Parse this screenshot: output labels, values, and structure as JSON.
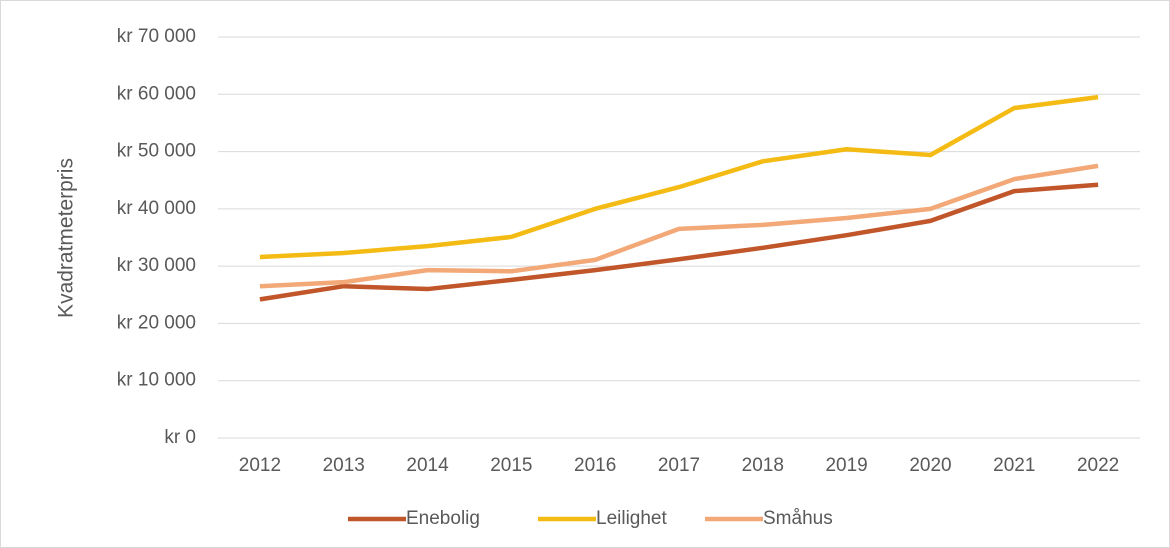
{
  "chart_data": {
    "type": "line",
    "ylabel": "Kvadratmeterpris",
    "categories": [
      "2012",
      "2013",
      "2014",
      "2015",
      "2016",
      "2017",
      "2018",
      "2019",
      "2020",
      "2021",
      "2022"
    ],
    "series": [
      {
        "name": "Enebolig",
        "color": "#c0562a",
        "values": [
          24200,
          26500,
          26000,
          27600,
          29300,
          31200,
          33200,
          35400,
          37900,
          43100,
          44200
        ]
      },
      {
        "name": "Leilighet",
        "color": "#f4bb14",
        "values": [
          31600,
          32300,
          33500,
          35100,
          40000,
          43800,
          48300,
          50400,
          49400,
          57600,
          59500
        ]
      },
      {
        "name": "Småhus",
        "color": "#f2a877",
        "values": [
          26500,
          27200,
          29300,
          29100,
          31100,
          36500,
          37200,
          38400,
          40000,
          45200,
          47500
        ]
      }
    ],
    "ylim": [
      0,
      70000
    ],
    "yticks": [
      {
        "value": 0,
        "label": "kr 0"
      },
      {
        "value": 10000,
        "label": "kr 10 000"
      },
      {
        "value": 20000,
        "label": "kr 20 000"
      },
      {
        "value": 30000,
        "label": "kr 30 000"
      },
      {
        "value": 40000,
        "label": "kr 40 000"
      },
      {
        "value": 50000,
        "label": "kr 50 000"
      },
      {
        "value": 60000,
        "label": "kr 60 000"
      },
      {
        "value": 70000,
        "label": "kr 70 000"
      }
    ],
    "grid": true,
    "legend": "bottom"
  }
}
